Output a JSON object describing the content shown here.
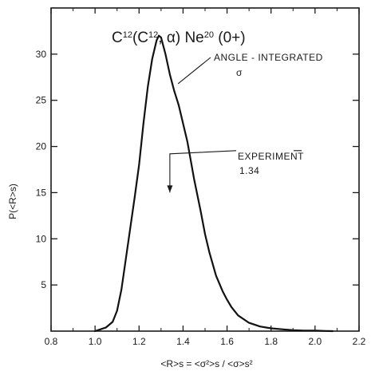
{
  "chart_data": {
    "type": "line",
    "title": {
      "parts": [
        "C",
        "12",
        "(C",
        "12",
        ", α) Ne",
        "20",
        " (0+)"
      ]
    },
    "xlabel": "<R>s = <σ²>s / <σ>s²",
    "ylabel": "P(<R>s)",
    "xlim": [
      0.8,
      2.2
    ],
    "ylim": [
      0,
      35
    ],
    "x_ticks": [
      0.8,
      1.0,
      1.2,
      1.4,
      1.6,
      1.8,
      2.0,
      2.2
    ],
    "x_tick_labels": [
      "0.8",
      "1.0",
      "1.2",
      "1.4",
      "1.6",
      "1.8",
      "2.0",
      "2.2"
    ],
    "y_ticks": [
      5,
      10,
      15,
      20,
      25,
      30
    ],
    "y_tick_labels": [
      "5",
      "10",
      "15",
      "20",
      "25",
      "30"
    ],
    "grid": false,
    "series": [
      {
        "x": [
          1.0,
          1.05,
          1.08,
          1.1,
          1.12,
          1.15,
          1.18,
          1.2,
          1.22,
          1.24,
          1.26,
          1.28,
          1.29,
          1.3,
          1.32,
          1.34,
          1.36,
          1.38,
          1.4,
          1.42,
          1.45,
          1.48,
          1.5,
          1.52,
          1.55,
          1.58,
          1.6,
          1.62,
          1.65,
          1.7,
          1.75,
          1.8,
          1.85,
          1.9,
          1.95,
          2.0,
          2.05,
          2.08
        ],
        "y": [
          0,
          0.4,
          1.0,
          2.2,
          4.5,
          9.5,
          14.5,
          18.0,
          22.5,
          26.5,
          29.5,
          31.5,
          32.0,
          31.8,
          30.0,
          27.8,
          26.0,
          24.5,
          22.5,
          20.5,
          16.5,
          13.0,
          10.5,
          8.5,
          6.0,
          4.3,
          3.4,
          2.6,
          1.7,
          0.9,
          0.5,
          0.3,
          0.2,
          0.1,
          0.05,
          0.05,
          0.02,
          0
        ]
      }
    ],
    "annotations": [
      {
        "lines": [
          "ANGLE - INTEGRATED",
          "σ"
        ],
        "target_x": 1.37,
        "target_y": 26.8
      },
      {
        "lines": [
          "EXPERIMENT",
          "1.34"
        ],
        "arrow_x": 1.34,
        "arrow_y_from": 19.2,
        "arrow_y_to": 15.0
      }
    ]
  }
}
